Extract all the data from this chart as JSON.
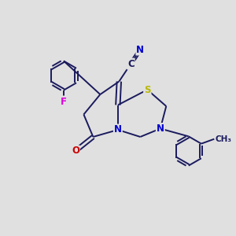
{
  "bg_color": "#e0e0e0",
  "bond_color": "#1a1a5e",
  "atom_colors": {
    "S": "#b8b800",
    "N": "#0000cc",
    "O": "#cc0000",
    "F": "#dd00dd",
    "C": "#1a1a5e"
  },
  "font_size": 8.5,
  "line_width": 1.4
}
